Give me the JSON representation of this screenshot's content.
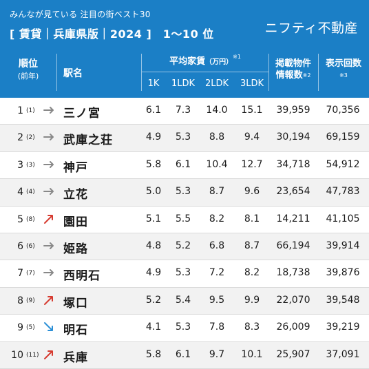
{
  "header": {
    "subtitle": "みんなが見ている 注目の街ベスト30",
    "title": "[ 賃貸｜兵庫県版｜2024 ]　1〜10 位",
    "brand": "ニフティ不動産",
    "bg_color": "#1b7fc6"
  },
  "table_header": {
    "rank": "順位",
    "rank_sub": "(前年)",
    "station": "駅名",
    "rent": "平均家賃",
    "rent_unit": "（万円）",
    "rent_note": "※1",
    "layouts": [
      "1K",
      "1LDK",
      "2LDK",
      "3LDK"
    ],
    "listings_line1": "掲載物件",
    "listings_line2": "情報数",
    "listings_note": "※2",
    "views_line1": "表示回数",
    "views_note": "※3"
  },
  "trend_colors": {
    "same": "#888888",
    "up": "#d63a2f",
    "down": "#2b8fd6"
  },
  "rows": [
    {
      "rank": "1",
      "prev": "(1)",
      "trend": "same",
      "station": "三ノ宮",
      "k1": "6.1",
      "ldk1": "7.3",
      "ldk2": "14.0",
      "ldk3": "15.1",
      "listings": "39,959",
      "views": "70,356"
    },
    {
      "rank": "2",
      "prev": "(2)",
      "trend": "same",
      "station": "武庫之荘",
      "k1": "4.9",
      "ldk1": "5.3",
      "ldk2": "8.8",
      "ldk3": "9.4",
      "listings": "30,194",
      "views": "69,159"
    },
    {
      "rank": "3",
      "prev": "(3)",
      "trend": "same",
      "station": "神戸",
      "k1": "5.8",
      "ldk1": "6.1",
      "ldk2": "10.4",
      "ldk3": "12.7",
      "listings": "34,718",
      "views": "54,912"
    },
    {
      "rank": "4",
      "prev": "(4)",
      "trend": "same",
      "station": "立花",
      "k1": "5.0",
      "ldk1": "5.3",
      "ldk2": "8.7",
      "ldk3": "9.6",
      "listings": "23,654",
      "views": "47,783"
    },
    {
      "rank": "5",
      "prev": "(8)",
      "trend": "up",
      "station": "園田",
      "k1": "5.1",
      "ldk1": "5.5",
      "ldk2": "8.2",
      "ldk3": "8.1",
      "listings": "14,211",
      "views": "41,105"
    },
    {
      "rank": "6",
      "prev": "(6)",
      "trend": "same",
      "station": "姫路",
      "k1": "4.8",
      "ldk1": "5.2",
      "ldk2": "6.8",
      "ldk3": "8.7",
      "listings": "66,194",
      "views": "39,914"
    },
    {
      "rank": "7",
      "prev": "(7)",
      "trend": "same",
      "station": "西明石",
      "k1": "4.9",
      "ldk1": "5.3",
      "ldk2": "7.2",
      "ldk3": "8.2",
      "listings": "18,738",
      "views": "39,876"
    },
    {
      "rank": "8",
      "prev": "(9)",
      "trend": "up",
      "station": "塚口",
      "k1": "5.2",
      "ldk1": "5.4",
      "ldk2": "9.5",
      "ldk3": "9.9",
      "listings": "22,070",
      "views": "39,548"
    },
    {
      "rank": "9",
      "prev": "(5)",
      "trend": "down",
      "station": "明石",
      "k1": "4.1",
      "ldk1": "5.3",
      "ldk2": "7.8",
      "ldk3": "8.3",
      "listings": "26,009",
      "views": "39,219"
    },
    {
      "rank": "10",
      "prev": "(11)",
      "trend": "up",
      "station": "兵庫",
      "k1": "5.8",
      "ldk1": "6.1",
      "ldk2": "9.7",
      "ldk3": "10.1",
      "listings": "25,907",
      "views": "37,091"
    }
  ]
}
